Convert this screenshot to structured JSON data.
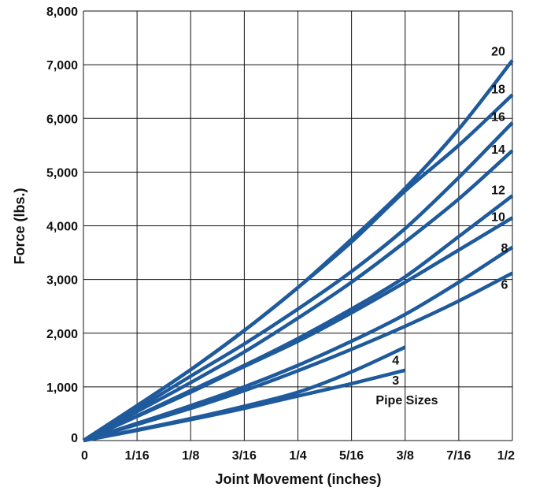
{
  "chart_data": {
    "type": "line",
    "title": "",
    "xlabel": "Joint Movement (inches)",
    "ylabel": "Force (lbs.)",
    "xlim": [
      0,
      0.5
    ],
    "ylim": [
      0,
      8000
    ],
    "grid": true,
    "line_color": "#1f5a9c",
    "x_ticks": [
      {
        "value": 0,
        "label": "0"
      },
      {
        "value": 0.0625,
        "label": "1/16"
      },
      {
        "value": 0.125,
        "label": "1/8"
      },
      {
        "value": 0.1875,
        "label": "3/16"
      },
      {
        "value": 0.25,
        "label": "1/4"
      },
      {
        "value": 0.3125,
        "label": "5/16"
      },
      {
        "value": 0.375,
        "label": "3/8"
      },
      {
        "value": 0.4375,
        "label": "7/16"
      },
      {
        "value": 0.5,
        "label": "1/2"
      }
    ],
    "y_ticks": [
      {
        "value": 0,
        "label": "0"
      },
      {
        "value": 1000,
        "label": "1,000"
      },
      {
        "value": 2000,
        "label": "2,000"
      },
      {
        "value": 3000,
        "label": "3,000"
      },
      {
        "value": 4000,
        "label": "4,000"
      },
      {
        "value": 5000,
        "label": "5,000"
      },
      {
        "value": 6000,
        "label": "6,000"
      },
      {
        "value": 7000,
        "label": "7,000"
      },
      {
        "value": 8000,
        "label": "8,000"
      }
    ],
    "annotation": "Pipe Sizes",
    "series": [
      {
        "name": "3",
        "x": [
          0,
          0.0625,
          0.125,
          0.1875,
          0.25,
          0.3125,
          0.375
        ],
        "y": [
          0,
          190,
          390,
          600,
          830,
          1060,
          1310
        ]
      },
      {
        "name": "4",
        "x": [
          0,
          0.0625,
          0.125,
          0.1875,
          0.25,
          0.3125,
          0.375
        ],
        "y": [
          0,
          200,
          410,
          640,
          900,
          1280,
          1740
        ]
      },
      {
        "name": "6",
        "x": [
          0,
          0.0625,
          0.125,
          0.1875,
          0.25,
          0.3125,
          0.375,
          0.4375,
          0.5
        ],
        "y": [
          0,
          300,
          600,
          930,
          1300,
          1700,
          2130,
          2600,
          3120
        ]
      },
      {
        "name": "8",
        "x": [
          0,
          0.0625,
          0.125,
          0.1875,
          0.25,
          0.3125,
          0.375,
          0.4375,
          0.5
        ],
        "y": [
          0,
          320,
          650,
          1000,
          1400,
          1850,
          2350,
          2950,
          3600
        ]
      },
      {
        "name": "10",
        "x": [
          0,
          0.0625,
          0.125,
          0.1875,
          0.25,
          0.3125,
          0.375,
          0.4375,
          0.5
        ],
        "y": [
          0,
          450,
          900,
          1380,
          1850,
          2380,
          2950,
          3550,
          4150
        ]
      },
      {
        "name": "12",
        "x": [
          0,
          0.0625,
          0.125,
          0.1875,
          0.25,
          0.3125,
          0.375,
          0.4375,
          0.5
        ],
        "y": [
          0,
          460,
          930,
          1400,
          1900,
          2450,
          3050,
          3800,
          4560
        ]
      },
      {
        "name": "14",
        "x": [
          0,
          0.0625,
          0.125,
          0.1875,
          0.25,
          0.3125,
          0.375,
          0.4375,
          0.5
        ],
        "y": [
          0,
          540,
          1080,
          1650,
          2280,
          2950,
          3700,
          4500,
          5400
        ]
      },
      {
        "name": "16",
        "x": [
          0,
          0.0625,
          0.125,
          0.1875,
          0.25,
          0.3125,
          0.375,
          0.4375,
          0.5
        ],
        "y": [
          0,
          590,
          1200,
          1800,
          2450,
          3150,
          3950,
          4900,
          5920
        ]
      },
      {
        "name": "18",
        "x": [
          0,
          0.0625,
          0.125,
          0.1875,
          0.25,
          0.3125,
          0.375,
          0.4375,
          0.5
        ],
        "y": [
          0,
          650,
          1320,
          2050,
          2850,
          3700,
          4650,
          5500,
          6440
        ]
      },
      {
        "name": "20",
        "x": [
          0,
          0.0625,
          0.125,
          0.1875,
          0.25,
          0.3125,
          0.375,
          0.4375,
          0.5
        ],
        "y": [
          0,
          650,
          1320,
          2050,
          2850,
          3750,
          4700,
          5800,
          7080
        ]
      }
    ]
  }
}
